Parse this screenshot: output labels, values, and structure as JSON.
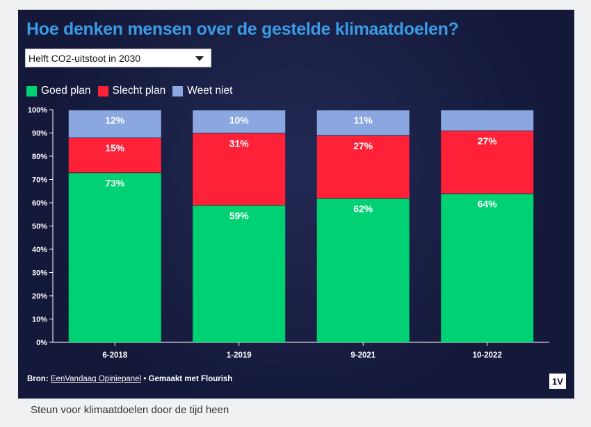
{
  "header": {
    "title": "Hoe denken mensen over de gestelde klimaatdoelen?"
  },
  "dropdown": {
    "selected": "Helft CO2-uitstoot in 2030"
  },
  "footer": {
    "source_label": "Bron:",
    "source_link": "EenVandaag Opiniepanel",
    "separator": "•",
    "made_with": "Gemaakt met Flourish",
    "logo_text": "1V"
  },
  "caption": "Steun voor klimaatdoelen door de tijd heen",
  "colors": {
    "goed": "#00d172",
    "slecht": "#ff2138",
    "weet_niet": "#8aa7e0",
    "title": "#3b9ae4",
    "background": "#14193a"
  },
  "chart_data": {
    "type": "bar",
    "stacked": true,
    "categories": [
      "6-2018",
      "1-2019",
      "9-2021",
      "10-2022"
    ],
    "series": [
      {
        "name": "Goed plan",
        "values": [
          73,
          59,
          62,
          64
        ],
        "labels": [
          "73%",
          "59%",
          "62%",
          "64%"
        ],
        "color": "#00d172"
      },
      {
        "name": "Slecht plan",
        "values": [
          15,
          31,
          27,
          27
        ],
        "labels": [
          "15%",
          "31%",
          "27%",
          "27%"
        ],
        "color": "#ff2138"
      },
      {
        "name": "Weet niet",
        "values": [
          12,
          10,
          11,
          9
        ],
        "labels": [
          "12%",
          "10%",
          "11%",
          ""
        ],
        "color": "#8aa7e0"
      }
    ],
    "yticks": [
      "0%",
      "10%",
      "20%",
      "30%",
      "40%",
      "50%",
      "60%",
      "70%",
      "80%",
      "90%",
      "100%"
    ],
    "ylim": [
      0,
      100
    ],
    "legend": "top-left",
    "grid": false
  }
}
